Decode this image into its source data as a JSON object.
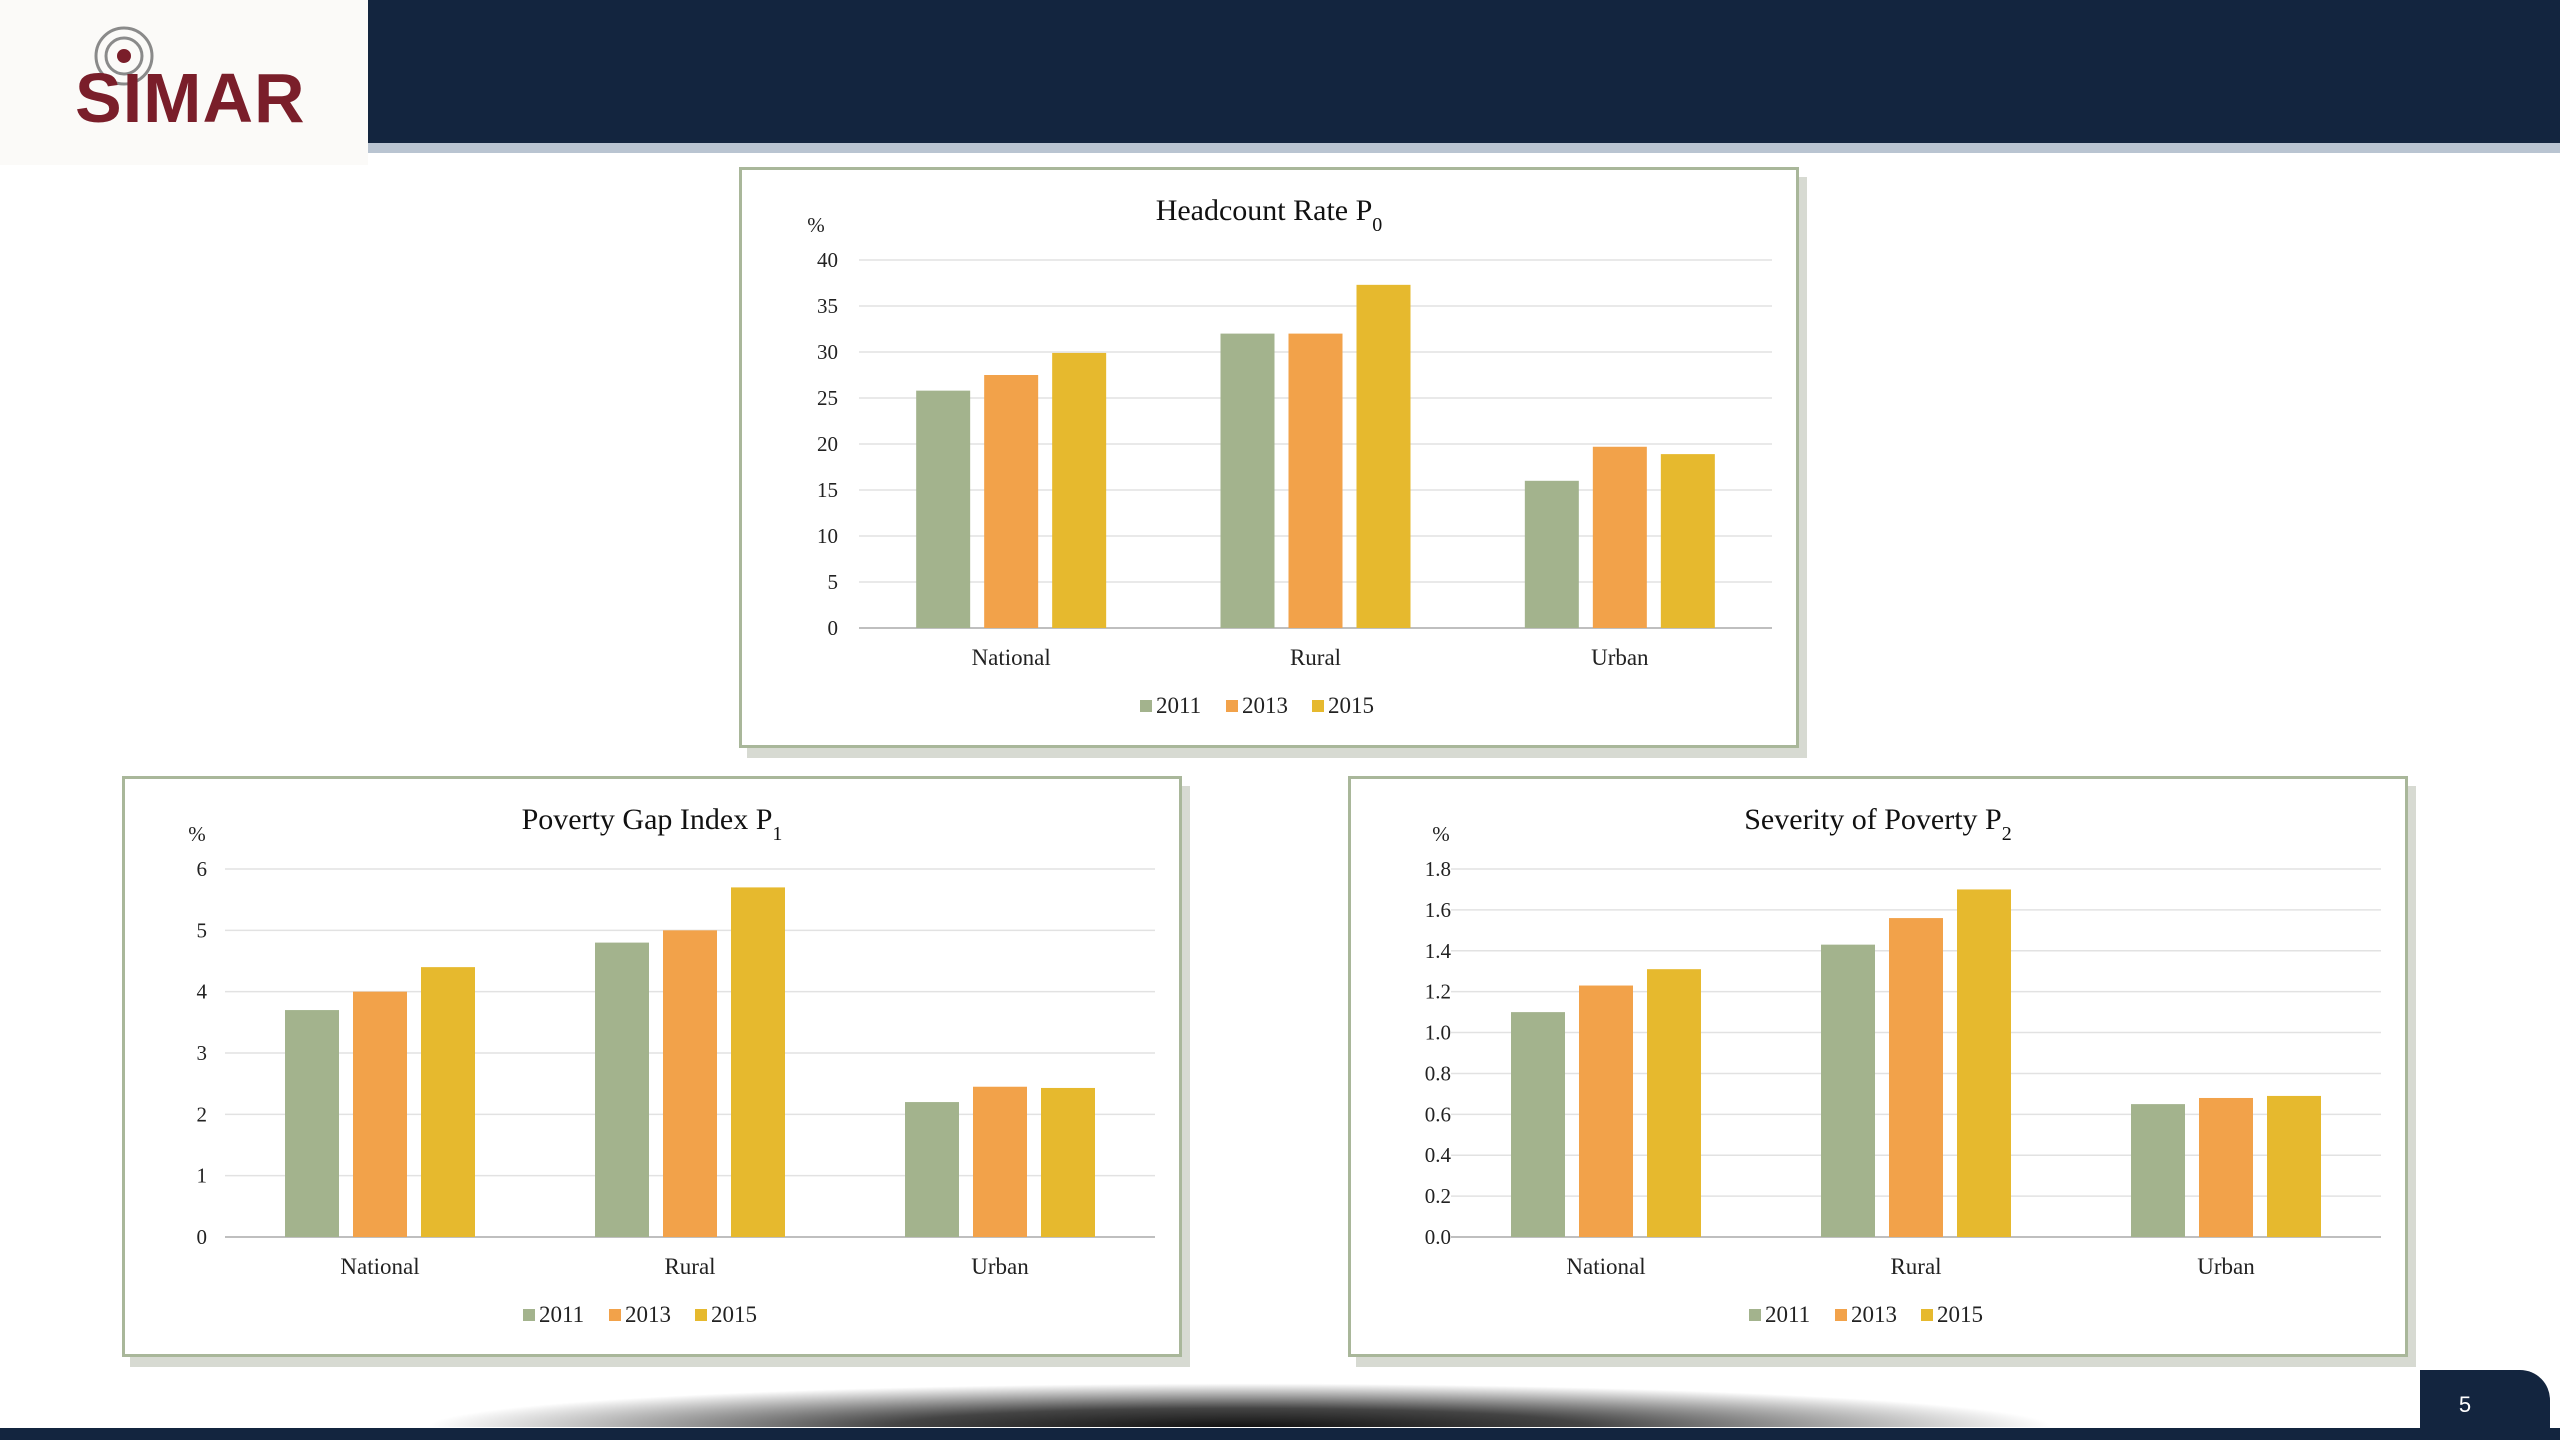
{
  "header": {
    "logo_text": "SIMAR"
  },
  "footer": {
    "page_number": "5"
  },
  "colors": {
    "2011": "#a3b38d",
    "2013": "#f2a24a",
    "2015": "#e6b92e",
    "header_bar": "#13253f",
    "logo_text": "#7a1e2a"
  },
  "chart_data": [
    {
      "id": "headcount",
      "type": "bar",
      "title": "Headcount Rate P",
      "title_sub": "0",
      "unit_label": "%",
      "categories": [
        "National",
        "Rural",
        "Urban"
      ],
      "series": [
        {
          "name": "2011",
          "values": [
            25.8,
            32.0,
            16.0
          ]
        },
        {
          "name": "2013",
          "values": [
            27.5,
            32.0,
            19.7
          ]
        },
        {
          "name": "2015",
          "values": [
            29.9,
            37.3,
            18.9
          ]
        }
      ],
      "ylim": [
        0,
        40
      ],
      "yticks": [
        "0",
        "5",
        "10",
        "15",
        "20",
        "25",
        "30",
        "35",
        "40"
      ],
      "ytick_values": [
        0,
        5,
        10,
        15,
        20,
        25,
        30,
        35,
        40
      ],
      "grid": true,
      "legend": "bottom"
    },
    {
      "id": "gap",
      "type": "bar",
      "title": "Poverty Gap Index P",
      "title_sub": "1",
      "unit_label": "%",
      "categories": [
        "National",
        "Rural",
        "Urban"
      ],
      "series": [
        {
          "name": "2011",
          "values": [
            3.7,
            4.8,
            2.2
          ]
        },
        {
          "name": "2013",
          "values": [
            4.0,
            5.0,
            2.45
          ]
        },
        {
          "name": "2015",
          "values": [
            4.4,
            5.7,
            2.43
          ]
        }
      ],
      "ylim": [
        0,
        6
      ],
      "yticks": [
        "0",
        "1",
        "2",
        "3",
        "4",
        "5",
        "6"
      ],
      "ytick_values": [
        0,
        1,
        2,
        3,
        4,
        5,
        6
      ],
      "grid": true,
      "legend": "bottom"
    },
    {
      "id": "severity",
      "type": "bar",
      "title": "Severity of Poverty P",
      "title_sub": "2",
      "unit_label": "%",
      "categories": [
        "National",
        "Rural",
        "Urban"
      ],
      "series": [
        {
          "name": "2011",
          "values": [
            1.1,
            1.43,
            0.65
          ]
        },
        {
          "name": "2013",
          "values": [
            1.23,
            1.56,
            0.68
          ]
        },
        {
          "name": "2015",
          "values": [
            1.31,
            1.7,
            0.69
          ]
        }
      ],
      "ylim": [
        0,
        1.8
      ],
      "yticks": [
        "0.0",
        "0.2",
        "0.4",
        "0.6",
        "0.8",
        "1.0",
        "1.2",
        "1.4",
        "1.6",
        "1.8"
      ],
      "ytick_values": [
        0,
        0.2,
        0.4,
        0.6,
        0.8,
        1.0,
        1.2,
        1.4,
        1.6,
        1.8
      ],
      "grid": true,
      "legend": "bottom"
    }
  ]
}
